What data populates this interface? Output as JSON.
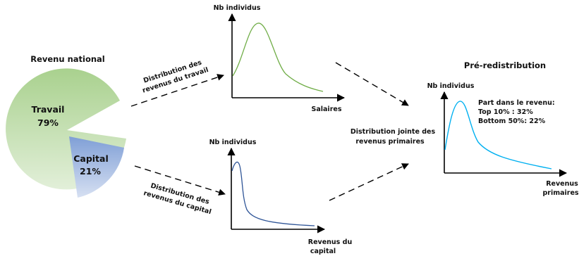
{
  "title_left": "Revenu national",
  "pie": {
    "slices": [
      {
        "label": "Travail",
        "percent_label": "79%",
        "value": 79,
        "color": "#a9d18e"
      },
      {
        "label": "Capital",
        "percent_label": "21%",
        "value": 21,
        "color": "#8eaadb"
      }
    ]
  },
  "arrow_labels": {
    "labor_line1": "Distribution des",
    "labor_line2": "revenus du travail",
    "capital_line1": "Distribution des",
    "capital_line2": "revenus du capital",
    "joint_line1": "Distribution jointe des",
    "joint_line2": "revenus primaires"
  },
  "charts": {
    "labor": {
      "ylabel": "Nb individus",
      "xlabel": "Salaires",
      "color": "#70ad47"
    },
    "capital": {
      "ylabel": "Nb individus",
      "xlabel_line1": "Revenus du",
      "xlabel_line2": "capital",
      "color": "#2f5597"
    },
    "primary": {
      "title": "Pré-redistribution",
      "ylabel": "Nb individus",
      "xlabel_line1": "Revenus",
      "xlabel_line2": "primaires",
      "color": "#00b0f0",
      "annotation_line1": "Part dans le revenu:",
      "annotation_line2": "Top 10% : 32%",
      "annotation_line3": "Bottom 50%: 22%"
    }
  }
}
